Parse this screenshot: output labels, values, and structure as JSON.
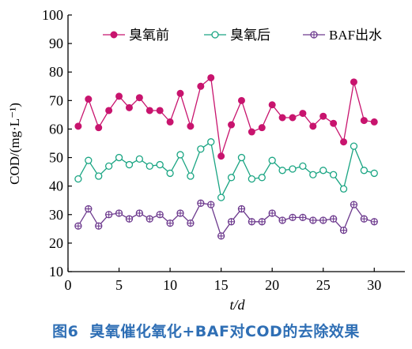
{
  "chart_data": {
    "type": "line",
    "xlabel": "t/d",
    "ylabel": "COD/(mg·L⁻¹)",
    "x_ticks": [
      0,
      5,
      10,
      15,
      20,
      25,
      30
    ],
    "y_ticks": [
      10,
      20,
      30,
      40,
      50,
      60,
      70,
      80,
      90,
      100
    ],
    "xlim": [
      0,
      33
    ],
    "ylim": [
      10,
      100
    ],
    "legend_position": "top-right",
    "x": [
      1,
      2,
      3,
      4,
      5,
      6,
      7,
      8,
      9,
      10,
      11,
      12,
      13,
      14,
      15,
      16,
      17,
      18,
      19,
      20,
      21,
      22,
      23,
      24,
      25,
      26,
      27,
      28,
      29,
      30
    ],
    "series": [
      {
        "name": "臭氧前",
        "color": "#c8146e",
        "marker": "filled-circle",
        "values": [
          61,
          70.5,
          60.5,
          66.5,
          71.5,
          67.5,
          71,
          66.5,
          66.5,
          62.5,
          72.5,
          61,
          75,
          78,
          50.5,
          61.5,
          70,
          59,
          60.5,
          68.5,
          64,
          64,
          65.5,
          61,
          64.5,
          62,
          55.5,
          76.5,
          63,
          62.5
        ]
      },
      {
        "name": "臭氧后",
        "color": "#1aa583",
        "marker": "open-circle",
        "values": [
          42.5,
          49,
          43.5,
          47,
          50,
          47.5,
          49.5,
          47,
          47.5,
          44.5,
          51,
          43.5,
          53,
          55.5,
          36,
          43,
          50,
          42.5,
          43,
          49,
          45.5,
          46,
          47,
          44,
          45.5,
          44,
          39,
          54,
          45.5,
          44.5
        ]
      },
      {
        "name": "BAF出水",
        "color": "#6d3a8e",
        "marker": "crossed-circle",
        "values": [
          26,
          32,
          26,
          30,
          30.5,
          28.5,
          30.5,
          28.5,
          30,
          27,
          30.5,
          27,
          34,
          33.5,
          22.5,
          27.5,
          32,
          27.5,
          27.5,
          30.5,
          28,
          29,
          29,
          28,
          28,
          28.5,
          24.5,
          33.5,
          28.5,
          27.5
        ]
      }
    ]
  },
  "caption": {
    "number": "图6",
    "text": "臭氧催化氧化+BAF对COD的去除效果"
  }
}
